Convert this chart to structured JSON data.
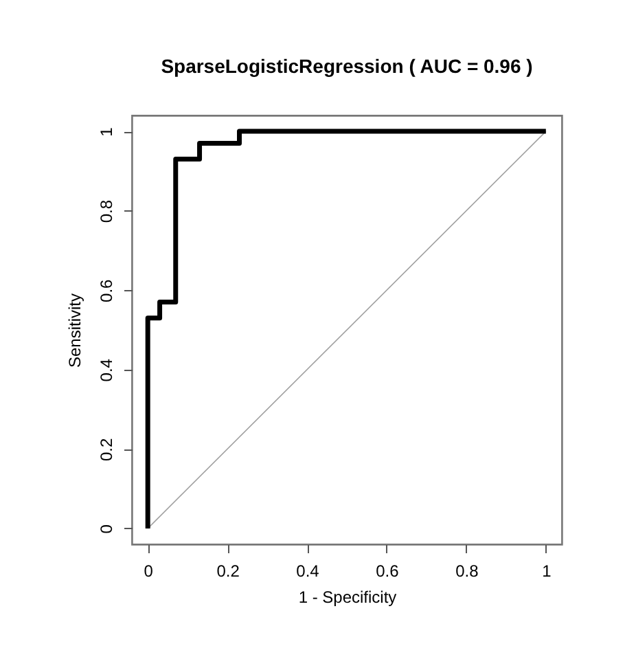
{
  "chart_data": {
    "type": "step",
    "title": "SparseLogisticRegression  ( AUC =  0.96 )",
    "xlabel": "1 - Specificity",
    "ylabel": "Sensitivity",
    "xlim": [
      -0.04,
      1.04
    ],
    "ylim": [
      -0.04,
      1.04
    ],
    "xticks": [
      0,
      0.2,
      0.4,
      0.6,
      0.8,
      1
    ],
    "yticks": [
      0,
      0.2,
      0.4,
      0.6,
      0.8,
      1
    ],
    "series": [
      {
        "color": "#000000",
        "x": [
          0,
          0,
          0.03,
          0.07,
          0.13,
          0.23,
          1
        ],
        "values": [
          0,
          0.53,
          0.57,
          0.93,
          0.97,
          1,
          1
        ]
      },
      {
        "type": "line",
        "color": "#a0a0a0",
        "x": [
          0,
          1
        ],
        "values": [
          0,
          1
        ]
      }
    ]
  }
}
